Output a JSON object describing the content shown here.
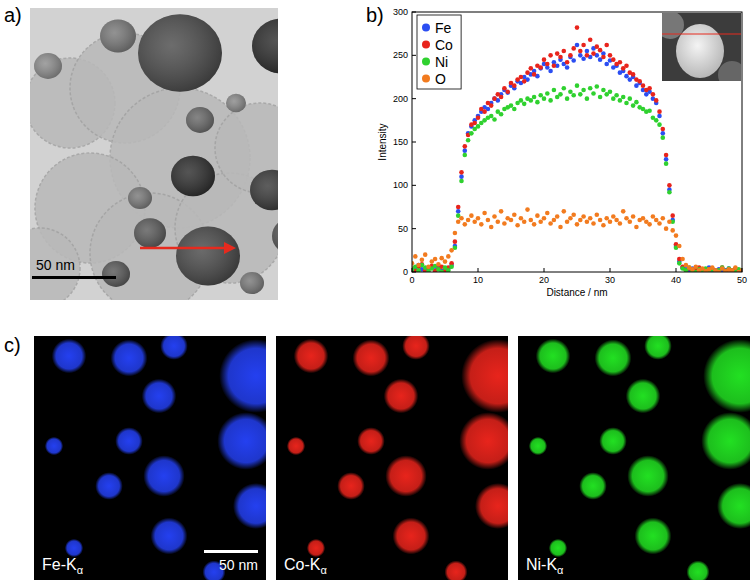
{
  "panel_labels": [
    "a)",
    "b)",
    "c)"
  ],
  "tem_image": {
    "scale_bar": "50 nm"
  },
  "chart_data": {
    "type": "scatter",
    "x_label": "Distance / nm",
    "y_label": "Intensity",
    "marker": "circle",
    "legend": "upper left",
    "xlim": [
      0,
      50
    ],
    "xticks": [
      0,
      10,
      20,
      30,
      40,
      50
    ],
    "ylim": [
      0,
      300
    ],
    "yticks": [
      0,
      50,
      100,
      150,
      200,
      250,
      300
    ],
    "x": [
      0,
      0.5,
      1,
      1.5,
      2,
      2.5,
      3,
      3.5,
      4,
      4.5,
      5,
      5.5,
      6,
      6.5,
      7,
      7.5,
      8,
      8.5,
      9,
      9.5,
      10,
      10.5,
      11,
      11.5,
      12,
      12.5,
      13,
      13.5,
      14,
      14.5,
      15,
      15.5,
      16,
      16.5,
      17,
      17.5,
      18,
      18.5,
      19,
      19.5,
      20,
      20.5,
      21,
      21.5,
      22,
      22.5,
      23,
      23.5,
      24,
      24.5,
      25,
      25.5,
      26,
      26.5,
      27,
      27.5,
      28,
      28.5,
      29,
      29.5,
      30,
      30.5,
      31,
      31.5,
      32,
      32.5,
      33,
      33.5,
      34,
      34.5,
      35,
      35.5,
      36,
      36.5,
      37,
      37.5,
      38,
      38.5,
      39,
      39.5,
      40,
      40.5,
      41,
      41.5,
      42,
      42.5,
      43,
      43.5,
      44,
      44.5,
      45,
      45.5,
      46,
      46.5,
      47,
      47.5,
      48,
      48.5,
      49,
      49.5,
      50
    ],
    "series": [
      {
        "name": "Fe",
        "color": "#2b4ef2",
        "values": [
          2,
          5,
          8,
          3,
          0,
          4,
          6,
          2,
          5,
          1,
          3,
          4,
          8,
          30,
          70,
          110,
          140,
          160,
          168,
          175,
          180,
          185,
          190,
          188,
          195,
          200,
          198,
          205,
          210,
          207,
          215,
          212,
          220,
          218,
          225,
          222,
          228,
          232,
          226,
          235,
          240,
          236,
          232,
          242,
          238,
          245,
          240,
          236,
          248,
          244,
          262,
          250,
          246,
          255,
          248,
          258,
          250,
          245,
          252,
          240,
          244,
          236,
          238,
          230,
          232,
          226,
          222,
          225,
          215,
          218,
          210,
          205,
          208,
          200,
          195,
          180,
          160,
          130,
          95,
          60,
          30,
          12,
          5,
          3,
          2,
          4,
          1,
          0,
          3,
          2,
          5,
          1,
          2,
          3,
          0,
          2,
          4,
          1,
          3,
          2,
          1
        ]
      },
      {
        "name": "Co",
        "color": "#e8241c",
        "values": [
          4,
          1,
          6,
          9,
          2,
          3,
          7,
          1,
          4,
          6,
          2,
          5,
          10,
          35,
          75,
          115,
          145,
          158,
          170,
          172,
          178,
          188,
          185,
          195,
          192,
          200,
          205,
          202,
          212,
          208,
          218,
          215,
          222,
          225,
          220,
          230,
          235,
          228,
          238,
          236,
          245,
          240,
          250,
          238,
          252,
          248,
          255,
          242,
          250,
          258,
          282,
          255,
          262,
          250,
          268,
          252,
          260,
          256,
          248,
          262,
          250,
          245,
          240,
          242,
          235,
          238,
          230,
          228,
          222,
          220,
          215,
          210,
          212,
          205,
          198,
          185,
          165,
          135,
          100,
          65,
          32,
          15,
          6,
          2,
          4,
          1,
          3,
          5,
          0,
          2,
          3,
          4,
          1,
          2,
          5,
          0,
          3,
          2,
          4,
          1,
          2
        ]
      },
      {
        "name": "Ni",
        "color": "#2fd12f",
        "values": [
          3,
          6,
          2,
          8,
          5,
          1,
          4,
          7,
          3,
          0,
          5,
          2,
          6,
          28,
          65,
          105,
          135,
          152,
          160,
          165,
          168,
          172,
          175,
          178,
          180,
          176,
          185,
          182,
          188,
          190,
          192,
          188,
          195,
          198,
          194,
          200,
          198,
          202,
          196,
          204,
          200,
          206,
          198,
          210,
          202,
          205,
          212,
          200,
          208,
          204,
          215,
          205,
          210,
          200,
          212,
          206,
          214,
          202,
          210,
          205,
          208,
          200,
          204,
          198,
          202,
          195,
          200,
          192,
          196,
          190,
          188,
          185,
          186,
          178,
          175,
          170,
          155,
          125,
          92,
          58,
          28,
          10,
          4,
          2,
          5,
          1,
          0,
          3,
          2,
          4,
          1,
          3,
          0,
          2,
          5,
          1,
          4,
          2,
          0,
          3,
          2
        ]
      },
      {
        "name": "O",
        "color": "#f27b1f",
        "values": [
          10,
          18,
          8,
          14,
          20,
          6,
          12,
          15,
          9,
          16,
          12,
          18,
          25,
          45,
          58,
          62,
          55,
          60,
          65,
          58,
          62,
          55,
          68,
          60,
          52,
          64,
          58,
          70,
          56,
          62,
          60,
          66,
          54,
          62,
          58,
          72,
          60,
          55,
          65,
          58,
          62,
          68,
          56,
          60,
          64,
          52,
          70,
          58,
          62,
          66,
          55,
          60,
          64,
          58,
          62,
          56,
          66,
          60,
          54,
          62,
          58,
          64,
          60,
          56,
          70,
          62,
          58,
          64,
          52,
          60,
          62,
          58,
          55,
          64,
          60,
          56,
          62,
          50,
          58,
          48,
          42,
          30,
          15,
          8,
          5,
          3,
          6,
          2,
          4,
          1,
          3,
          5,
          2,
          0,
          4,
          1,
          3,
          2,
          5,
          0,
          2
        ]
      }
    ]
  },
  "element_maps": {
    "labels": [
      "Fe-Kα",
      "Co-Kα",
      "Ni-Kα"
    ],
    "colors": [
      "#2440f0",
      "#e8241c",
      "#22e022"
    ],
    "scale_bar": "50 nm"
  }
}
